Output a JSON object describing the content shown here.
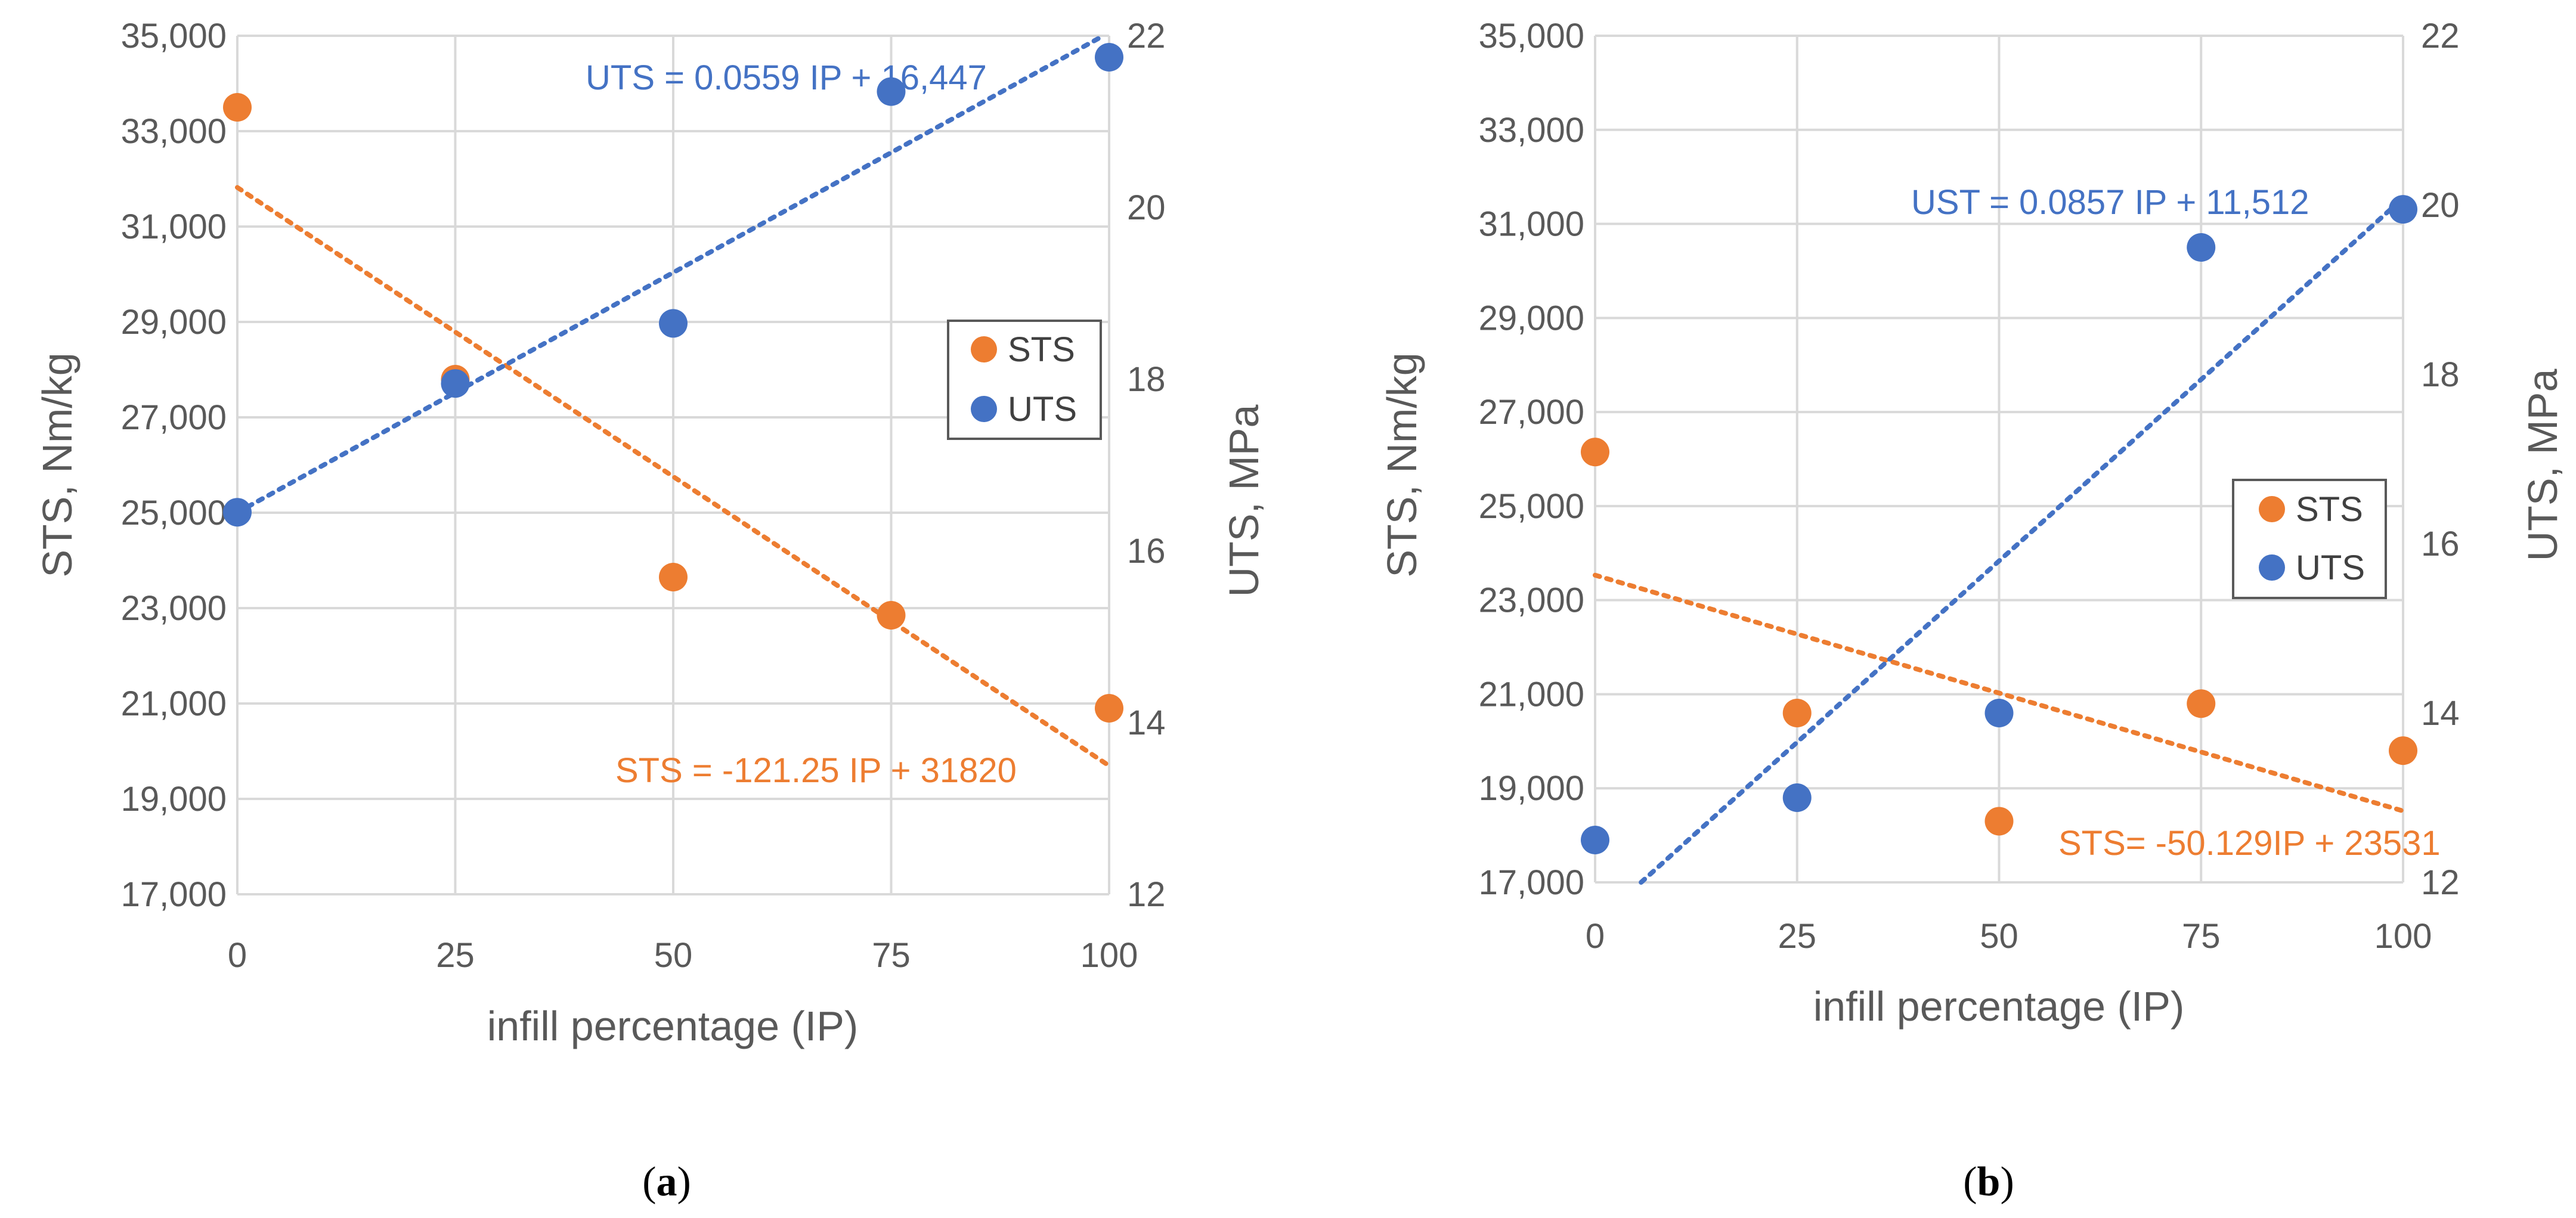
{
  "colors": {
    "sts": "#ED7D31",
    "uts": "#4472C4",
    "grid": "#D9D9D9",
    "axis": "#BFBFBF",
    "text": "#595959"
  },
  "chart_data": [
    {
      "id": "a",
      "type": "scatter",
      "caption_letter": "a",
      "caption_open": "(",
      "caption_close": ")",
      "xlabel": "infill percentage (IP)",
      "ylabel": "STS, Nm/kg",
      "y2label": "UTS, MPa",
      "x_ticks": [
        0,
        25,
        50,
        75,
        100
      ],
      "x_tick_labels": [
        "0",
        "25",
        "50",
        "75",
        "100"
      ],
      "xlim": [
        0,
        100
      ],
      "ylim": [
        17000,
        35000
      ],
      "y_ticks": [
        17000,
        19000,
        21000,
        23000,
        25000,
        27000,
        29000,
        31000,
        33000,
        35000
      ],
      "y_tick_labels": [
        "17,000",
        "19,000",
        "21,000",
        "23,000",
        "25,000",
        "27,000",
        "29,000",
        "31,000",
        "33,000",
        "35,000"
      ],
      "y2lim": [
        12,
        22
      ],
      "y2_ticks": [
        12,
        14,
        16,
        18,
        20,
        22
      ],
      "y2_tick_labels": [
        "12",
        "14",
        "16",
        "18",
        "20",
        "22"
      ],
      "legend": {
        "position": "right",
        "entries": [
          "STS",
          "UTS"
        ]
      },
      "series": [
        {
          "name": "STS",
          "axis": "left",
          "x": [
            0,
            25,
            50,
            75,
            100
          ],
          "values": [
            33500,
            27800,
            23650,
            22850,
            20900
          ],
          "trend": {
            "slope": -121.25,
            "intercept": 31820
          }
        },
        {
          "name": "UTS",
          "axis": "right",
          "x": [
            0,
            25,
            50,
            75,
            100
          ],
          "values": [
            16.45,
            17.95,
            18.65,
            21.35,
            21.75
          ],
          "trend": {
            "slope": 0.0559,
            "intercept": 16.447
          }
        }
      ],
      "annotations": {
        "uts_eq": "UTS = 0.0559 IP + 16,447",
        "sts_eq": "STS = -121.25 IP + 31820"
      }
    },
    {
      "id": "b",
      "type": "scatter",
      "caption_letter": "b",
      "caption_open": "(",
      "caption_close": ")",
      "xlabel": "infill percentage (IP)",
      "ylabel": "STS, Nm/kg",
      "y2label": "UTS, MPa",
      "x_ticks": [
        0,
        25,
        50,
        75,
        100
      ],
      "x_tick_labels": [
        "0",
        "25",
        "50",
        "75",
        "100"
      ],
      "xlim": [
        0,
        100
      ],
      "ylim": [
        17000,
        35000
      ],
      "y_ticks": [
        17000,
        19000,
        21000,
        23000,
        25000,
        27000,
        29000,
        31000,
        33000,
        35000
      ],
      "y_tick_labels": [
        "17,000",
        "19,000",
        "21,000",
        "23,000",
        "25,000",
        "27,000",
        "29,000",
        "31,000",
        "33,000",
        "35,000"
      ],
      "y2lim": [
        12,
        22
      ],
      "y2_ticks": [
        12,
        14,
        16,
        18,
        20,
        22
      ],
      "y2_tick_labels": [
        "12",
        "14",
        "16",
        "18",
        "20",
        "22"
      ],
      "legend": {
        "position": "right",
        "entries": [
          "STS",
          "UTS"
        ]
      },
      "series": [
        {
          "name": "STS",
          "axis": "left",
          "x": [
            0,
            25,
            50,
            75,
            100
          ],
          "values": [
            26150,
            20600,
            18300,
            20800,
            19800
          ],
          "trend": {
            "slope": -50.129,
            "intercept": 23531
          }
        },
        {
          "name": "UTS",
          "axis": "right",
          "x": [
            0,
            25,
            50,
            75,
            100
          ],
          "values": [
            12.5,
            13.0,
            14.0,
            19.5,
            19.95
          ],
          "trend": {
            "slope": 0.0857,
            "intercept": 11.512
          }
        }
      ],
      "annotations": {
        "uts_eq": "UST = 0.0857 IP + 11,512",
        "sts_eq": "STS= -50.129IP + 23531"
      }
    }
  ]
}
